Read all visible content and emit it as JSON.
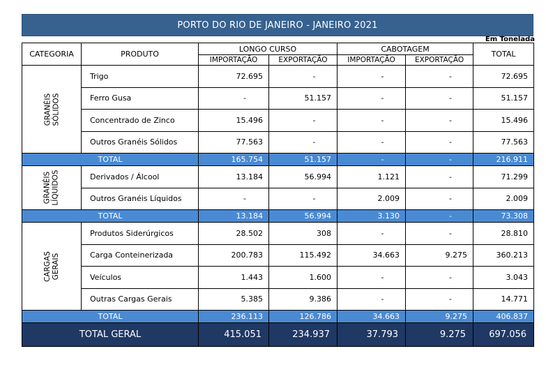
{
  "title": "PORTO DO RIO DE JANEIRO - JANEIRO 2021",
  "unit_note": "Em Tonelada",
  "headers": {
    "categoria": "CATEGORIA",
    "produto": "PRODUTO",
    "longo_curso": "LONGO CURSO",
    "cabotagem": "CABOTAGEM",
    "total": "TOTAL",
    "importacao": "IMPORTAÇÃO",
    "exportacao": "EXPORTAÇÃO"
  },
  "groups": [
    {
      "category_line1": "GRANÉIS",
      "category_line2": "SÓLIDOS",
      "rows": [
        {
          "produto": "Trigo",
          "lc_imp": "72.695",
          "lc_exp": "-",
          "cab_imp": "-",
          "cab_exp": "-",
          "total": "72.695"
        },
        {
          "produto": "Ferro Gusa",
          "lc_imp": "-",
          "lc_exp": "51.157",
          "cab_imp": "-",
          "cab_exp": "-",
          "total": "51.157"
        },
        {
          "produto": "Concentrado de Zinco",
          "lc_imp": "15.496",
          "lc_exp": "-",
          "cab_imp": "-",
          "cab_exp": "-",
          "total": "15.496"
        },
        {
          "produto": "Outros Granéis Sólidos",
          "lc_imp": "77.563",
          "lc_exp": "-",
          "cab_imp": "-",
          "cab_exp": "-",
          "total": "77.563"
        }
      ],
      "total": {
        "label": "TOTAL",
        "lc_imp": "165.754",
        "lc_exp": "51.157",
        "cab_imp": "-",
        "cab_exp": "-",
        "total": "216.911"
      }
    },
    {
      "category_line1": "GRANÉIS",
      "category_line2": "LÍQUIDOS",
      "rows": [
        {
          "produto": "Derivados / Álcool",
          "lc_imp": "13.184",
          "lc_exp": "56.994",
          "cab_imp": "1.121",
          "cab_exp": "-",
          "total": "71.299"
        },
        {
          "produto": "Outros Granéis Líquidos",
          "lc_imp": "-",
          "lc_exp": "-",
          "cab_imp": "2.009",
          "cab_exp": "-",
          "total": "2.009"
        }
      ],
      "total": {
        "label": "TOTAL",
        "lc_imp": "13.184",
        "lc_exp": "56.994",
        "cab_imp": "3.130",
        "cab_exp": "-",
        "total": "73.308"
      }
    },
    {
      "category_line1": "CARGAS",
      "category_line2": "GERAIS",
      "rows": [
        {
          "produto": "Produtos Siderúrgicos",
          "lc_imp": "28.502",
          "lc_exp": "308",
          "cab_imp": "-",
          "cab_exp": "-",
          "total": "28.810"
        },
        {
          "produto": "Carga Conteinerizada",
          "lc_imp": "200.783",
          "lc_exp": "115.492",
          "cab_imp": "34.663",
          "cab_exp": "9.275",
          "total": "360.213"
        },
        {
          "produto": "Veículos",
          "lc_imp": "1.443",
          "lc_exp": "1.600",
          "cab_imp": "-",
          "cab_exp": "-",
          "total": "3.043"
        },
        {
          "produto": "Outras Cargas Gerais",
          "lc_imp": "5.385",
          "lc_exp": "9.386",
          "cab_imp": "-",
          "cab_exp": "-",
          "total": "14.771"
        }
      ],
      "total": {
        "label": "TOTAL",
        "lc_imp": "236.113",
        "lc_exp": "126.786",
        "cab_imp": "34.663",
        "cab_exp": "9.275",
        "total": "406.837"
      }
    }
  ],
  "grand_total": {
    "label": "TOTAL GERAL",
    "lc_imp": "415.051",
    "lc_exp": "234.937",
    "cab_imp": "37.793",
    "cab_exp": "9.275",
    "total": "697.056"
  }
}
